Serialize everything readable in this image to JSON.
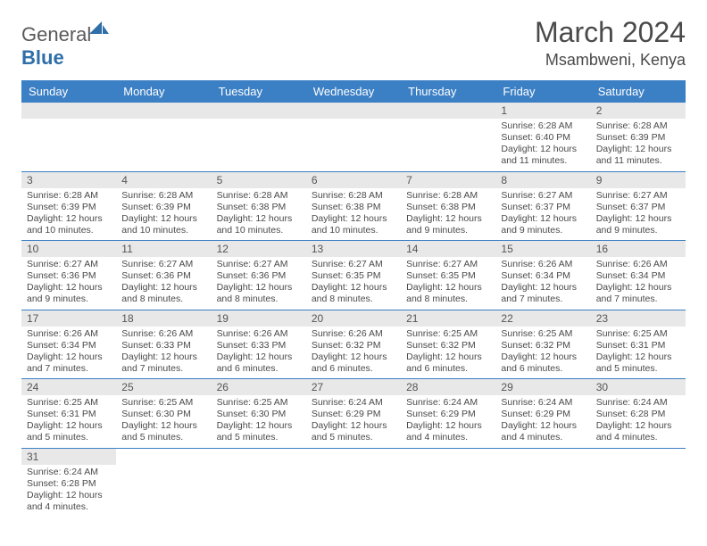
{
  "logo": {
    "text1": "General",
    "text2": "Blue"
  },
  "title": "March 2024",
  "location": "Msambweni, Kenya",
  "header_bg": "#3b7fc4",
  "daynum_bg": "#e8e8e8",
  "weekdays": [
    "Sunday",
    "Monday",
    "Tuesday",
    "Wednesday",
    "Thursday",
    "Friday",
    "Saturday"
  ],
  "weeks": [
    [
      null,
      null,
      null,
      null,
      null,
      {
        "n": "1",
        "sr": "6:28 AM",
        "ss": "6:40 PM",
        "dl": "12 hours and 11 minutes."
      },
      {
        "n": "2",
        "sr": "6:28 AM",
        "ss": "6:39 PM",
        "dl": "12 hours and 11 minutes."
      }
    ],
    [
      {
        "n": "3",
        "sr": "6:28 AM",
        "ss": "6:39 PM",
        "dl": "12 hours and 10 minutes."
      },
      {
        "n": "4",
        "sr": "6:28 AM",
        "ss": "6:39 PM",
        "dl": "12 hours and 10 minutes."
      },
      {
        "n": "5",
        "sr": "6:28 AM",
        "ss": "6:38 PM",
        "dl": "12 hours and 10 minutes."
      },
      {
        "n": "6",
        "sr": "6:28 AM",
        "ss": "6:38 PM",
        "dl": "12 hours and 10 minutes."
      },
      {
        "n": "7",
        "sr": "6:28 AM",
        "ss": "6:38 PM",
        "dl": "12 hours and 9 minutes."
      },
      {
        "n": "8",
        "sr": "6:27 AM",
        "ss": "6:37 PM",
        "dl": "12 hours and 9 minutes."
      },
      {
        "n": "9",
        "sr": "6:27 AM",
        "ss": "6:37 PM",
        "dl": "12 hours and 9 minutes."
      }
    ],
    [
      {
        "n": "10",
        "sr": "6:27 AM",
        "ss": "6:36 PM",
        "dl": "12 hours and 9 minutes."
      },
      {
        "n": "11",
        "sr": "6:27 AM",
        "ss": "6:36 PM",
        "dl": "12 hours and 8 minutes."
      },
      {
        "n": "12",
        "sr": "6:27 AM",
        "ss": "6:36 PM",
        "dl": "12 hours and 8 minutes."
      },
      {
        "n": "13",
        "sr": "6:27 AM",
        "ss": "6:35 PM",
        "dl": "12 hours and 8 minutes."
      },
      {
        "n": "14",
        "sr": "6:27 AM",
        "ss": "6:35 PM",
        "dl": "12 hours and 8 minutes."
      },
      {
        "n": "15",
        "sr": "6:26 AM",
        "ss": "6:34 PM",
        "dl": "12 hours and 7 minutes."
      },
      {
        "n": "16",
        "sr": "6:26 AM",
        "ss": "6:34 PM",
        "dl": "12 hours and 7 minutes."
      }
    ],
    [
      {
        "n": "17",
        "sr": "6:26 AM",
        "ss": "6:34 PM",
        "dl": "12 hours and 7 minutes."
      },
      {
        "n": "18",
        "sr": "6:26 AM",
        "ss": "6:33 PM",
        "dl": "12 hours and 7 minutes."
      },
      {
        "n": "19",
        "sr": "6:26 AM",
        "ss": "6:33 PM",
        "dl": "12 hours and 6 minutes."
      },
      {
        "n": "20",
        "sr": "6:26 AM",
        "ss": "6:32 PM",
        "dl": "12 hours and 6 minutes."
      },
      {
        "n": "21",
        "sr": "6:25 AM",
        "ss": "6:32 PM",
        "dl": "12 hours and 6 minutes."
      },
      {
        "n": "22",
        "sr": "6:25 AM",
        "ss": "6:32 PM",
        "dl": "12 hours and 6 minutes."
      },
      {
        "n": "23",
        "sr": "6:25 AM",
        "ss": "6:31 PM",
        "dl": "12 hours and 5 minutes."
      }
    ],
    [
      {
        "n": "24",
        "sr": "6:25 AM",
        "ss": "6:31 PM",
        "dl": "12 hours and 5 minutes."
      },
      {
        "n": "25",
        "sr": "6:25 AM",
        "ss": "6:30 PM",
        "dl": "12 hours and 5 minutes."
      },
      {
        "n": "26",
        "sr": "6:25 AM",
        "ss": "6:30 PM",
        "dl": "12 hours and 5 minutes."
      },
      {
        "n": "27",
        "sr": "6:24 AM",
        "ss": "6:29 PM",
        "dl": "12 hours and 5 minutes."
      },
      {
        "n": "28",
        "sr": "6:24 AM",
        "ss": "6:29 PM",
        "dl": "12 hours and 4 minutes."
      },
      {
        "n": "29",
        "sr": "6:24 AM",
        "ss": "6:29 PM",
        "dl": "12 hours and 4 minutes."
      },
      {
        "n": "30",
        "sr": "6:24 AM",
        "ss": "6:28 PM",
        "dl": "12 hours and 4 minutes."
      }
    ],
    [
      {
        "n": "31",
        "sr": "6:24 AM",
        "ss": "6:28 PM",
        "dl": "12 hours and 4 minutes."
      },
      null,
      null,
      null,
      null,
      null,
      null
    ]
  ],
  "labels": {
    "sunrise": "Sunrise:",
    "sunset": "Sunset:",
    "daylight": "Daylight:"
  }
}
